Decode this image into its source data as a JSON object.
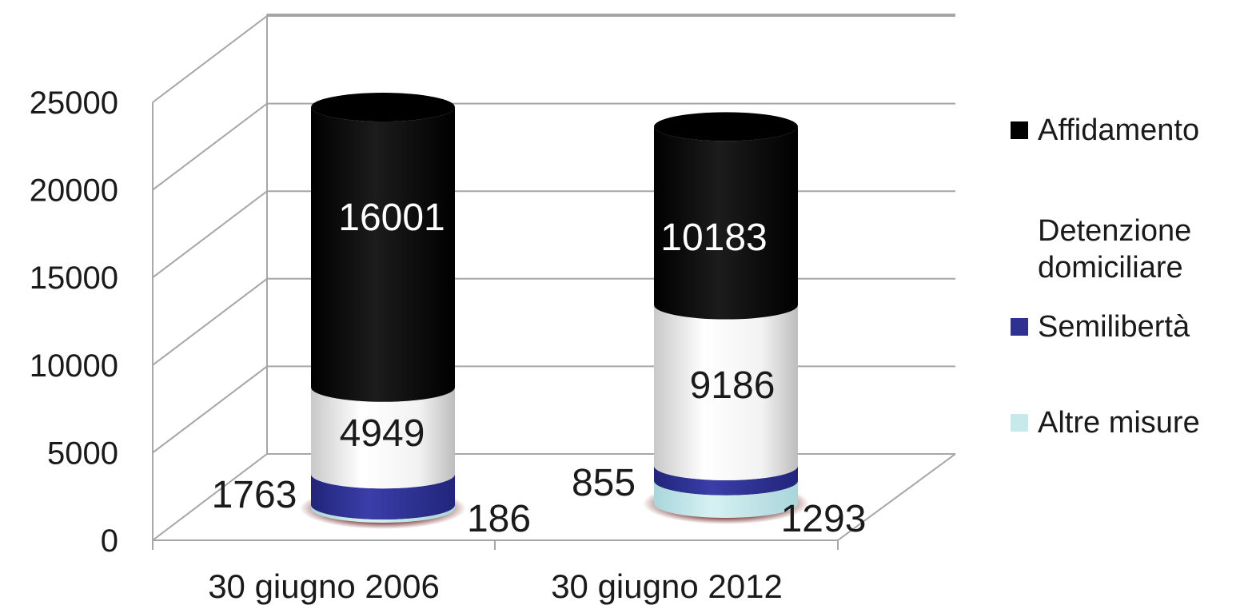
{
  "chart_data": {
    "type": "bar",
    "stacked": true,
    "style": "3d-cylinder",
    "categories": [
      "30 giugno 2006",
      "30 giugno 2012"
    ],
    "series": [
      {
        "name": "Altre misure",
        "values": [
          186,
          1293
        ],
        "color": "#c6e9ec"
      },
      {
        "name": "Semilibertà",
        "values": [
          1763,
          855
        ],
        "color": "#2e3192"
      },
      {
        "name": "Detenzione domiciliare",
        "values": [
          4949,
          9186
        ],
        "color": "#f4f4f4"
      },
      {
        "name": "Affidamento",
        "values": [
          16001,
          10183
        ],
        "color": "#000000"
      }
    ],
    "legend_order": [
      "Affidamento",
      "Detenzione domiciliare",
      "Semilibertà",
      "Altre misure"
    ],
    "yticks": [
      "0",
      "5000",
      "10000",
      "15000",
      "20000",
      "25000"
    ],
    "ylim": [
      0,
      25000
    ],
    "grid": true,
    "legend_position": "right"
  }
}
